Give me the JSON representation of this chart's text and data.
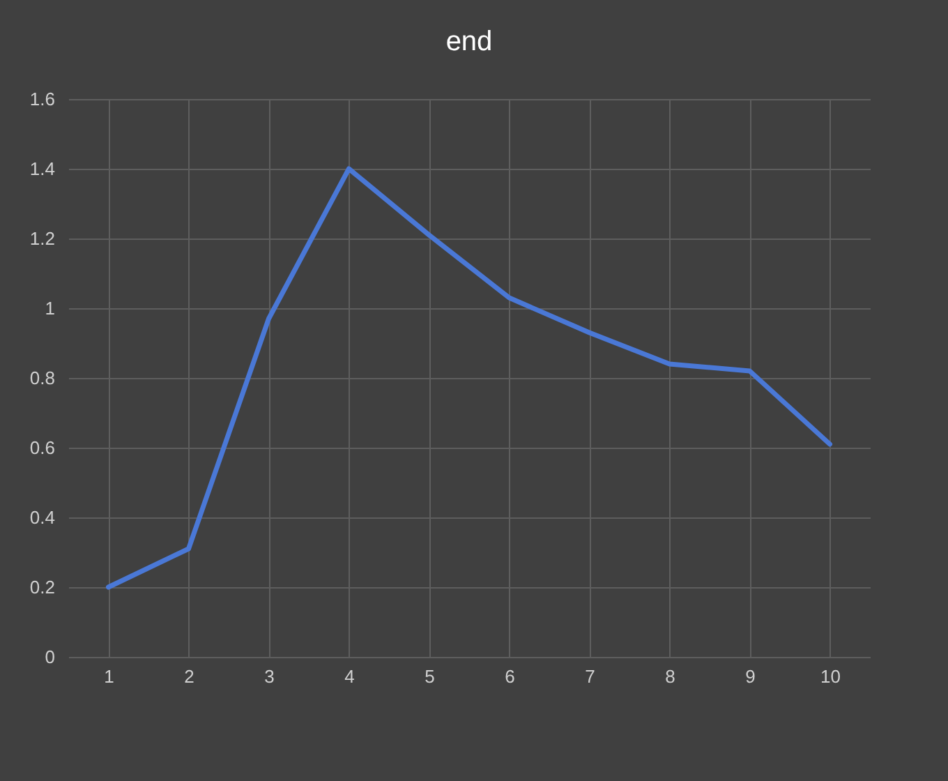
{
  "chart_data": {
    "type": "line",
    "title": "end",
    "categories": [
      "1",
      "2",
      "3",
      "4",
      "5",
      "6",
      "7",
      "8",
      "9",
      "10"
    ],
    "series": [
      {
        "color": "#4a78d6",
        "values": [
          0.2,
          0.31,
          0.97,
          1.4,
          1.21,
          1.03,
          0.93,
          0.84,
          0.82,
          0.61
        ]
      }
    ],
    "ylim": [
      0,
      1.6
    ],
    "yticks": [
      0,
      0.2,
      0.4,
      0.6,
      0.8,
      1,
      1.2,
      1.4,
      1.6
    ],
    "grid": true
  }
}
